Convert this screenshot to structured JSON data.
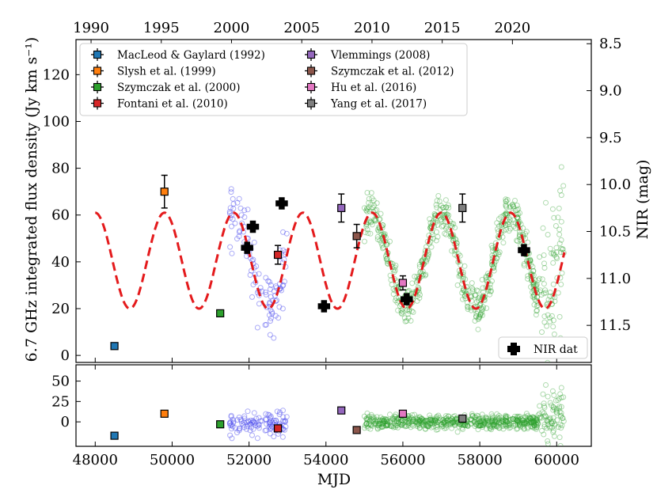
{
  "chart_data": {
    "type": "scatter",
    "top_axis": {
      "ticks": [
        "1990",
        "1995",
        "2000",
        "2005",
        "2010",
        "2015",
        "2020"
      ],
      "ticks_mjd": [
        47892,
        49718,
        51544,
        53371,
        55197,
        57023,
        58849
      ]
    },
    "main": {
      "ylabel": "6.7 GHz integrated flux density (Jy km s⁻¹)",
      "ylim": [
        -3,
        135
      ],
      "yticks": [
        0,
        20,
        40,
        60,
        80,
        100,
        120
      ],
      "right_axis": {
        "label": "NIR (mag)",
        "ticks": [
          "8.5",
          "9.0",
          "9.5",
          "10.0",
          "10.5",
          "11.0",
          "11.5"
        ],
        "mag_at_flux0": 11.82,
        "mag_per_unit_flux": -0.02492
      }
    },
    "residual": {
      "ylim": [
        -30,
        70
      ],
      "yticks": [
        0,
        25,
        50
      ]
    },
    "x": {
      "label": "MJD",
      "lim": [
        47500,
        60900
      ],
      "ticks": [
        48000,
        50000,
        52000,
        54000,
        56000,
        58000,
        60000
      ]
    },
    "legend": {
      "position": "top-left",
      "entries": [
        {
          "label": "MacLeod & Gaylard (1992)",
          "color": "#1f77b4"
        },
        {
          "label": "Slysh et al. (1999)",
          "color": "#ff7f0e"
        },
        {
          "label": "Szymczak et al. (2000)",
          "color": "#2ca02c"
        },
        {
          "label": "Fontani et al. (2010)",
          "color": "#d62728"
        },
        {
          "label": "Vlemmings (2008)",
          "color": "#9467bd"
        },
        {
          "label": "Szymczak et al. (2012)",
          "color": "#8c564b"
        },
        {
          "label": "Hu et al. (2016)",
          "color": "#e377c2"
        },
        {
          "label": "Yang et al. (2017)",
          "color": "#7f7f7f"
        }
      ]
    },
    "nir_legend": {
      "label": "NIR dat",
      "position": "lower-right"
    },
    "literature_points": [
      {
        "x": 48500,
        "y": 4,
        "err": 0,
        "resid": -17,
        "color": "#1f77b4"
      },
      {
        "x": 49800,
        "y": 70,
        "err": 7,
        "resid": 10,
        "color": "#ff7f0e"
      },
      {
        "x": 51250,
        "y": 18,
        "err": 1,
        "resid": -3,
        "color": "#2ca02c"
      },
      {
        "x": 52750,
        "y": 43,
        "err": 4,
        "resid": -8,
        "color": "#d62728"
      },
      {
        "x": 54400,
        "y": 63,
        "err": 6,
        "resid": 14,
        "color": "#9467bd"
      },
      {
        "x": 54800,
        "y": 51,
        "err": 5,
        "resid": -10,
        "color": "#8c564b"
      },
      {
        "x": 56000,
        "y": 31,
        "err": 3,
        "resid": 10,
        "color": "#e377c2"
      },
      {
        "x": 57550,
        "y": 63,
        "err": 6,
        "resid": 4,
        "color": "#7f7f7f"
      }
    ],
    "nir_points": [
      {
        "x": 51950,
        "y": 46
      },
      {
        "x": 52100,
        "y": 55
      },
      {
        "x": 52850,
        "y": 65
      },
      {
        "x": 53950,
        "y": 21
      },
      {
        "x": 56100,
        "y": 24
      },
      {
        "x": 59150,
        "y": 45
      }
    ],
    "fit_curve": {
      "color": "#e41a1c",
      "x_start": 48000,
      "x_end": 60200,
      "mean": 40.5,
      "amplitude": 20.5,
      "period": 1800,
      "peak_mjd": 49800
    },
    "blue_data": {
      "color": "#4444ee",
      "x_range": [
        51500,
        53000
      ]
    },
    "green_data": {
      "color": "#2ca02c",
      "x_range": [
        55000,
        60200
      ]
    }
  }
}
